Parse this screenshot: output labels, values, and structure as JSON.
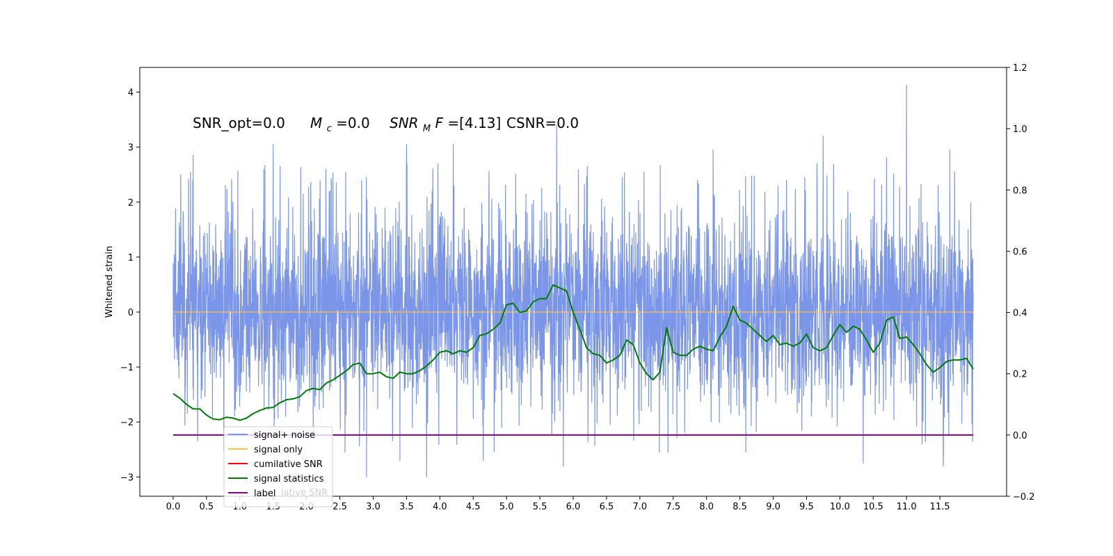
{
  "chart_data": {
    "type": "line",
    "title": "",
    "xlabel": "",
    "ylabel": "Whitened strain",
    "xlim": [
      -0.5,
      12.5
    ],
    "ylim": [
      -3.35,
      4.45
    ],
    "y2lim": [
      -0.2,
      1.2
    ],
    "grid": false,
    "x_ticks": [
      0.0,
      0.5,
      1.0,
      1.5,
      2.0,
      2.5,
      3.0,
      3.5,
      4.0,
      4.5,
      5.0,
      5.5,
      6.0,
      6.5,
      7.0,
      7.5,
      8.0,
      8.5,
      9.0,
      9.5,
      10.0,
      10.5,
      11.0,
      11.5
    ],
    "x_tick_labels": [
      "0.0",
      "0.5",
      "1.0",
      "1.5",
      "2.0",
      "2.5",
      "3.0",
      "3.5",
      "4.0",
      "4.5",
      "5.0",
      "5.5",
      "6.0",
      "6.5",
      "7.0",
      "7.5",
      "8.0",
      "8.5",
      "9.0",
      "9.5",
      "10.0",
      "10.5",
      "11.0",
      "11.5"
    ],
    "y_ticks": [
      -3,
      -2,
      -1,
      0,
      1,
      2,
      3,
      4
    ],
    "y_tick_labels": [
      "−3",
      "−2",
      "−1",
      "0",
      "1",
      "2",
      "3",
      "4"
    ],
    "y2_ticks": [
      -0.2,
      0.0,
      0.2,
      0.4,
      0.6,
      0.8,
      1.0,
      1.2
    ],
    "y2_tick_labels": [
      "−0.2",
      "0.0",
      "0.2",
      "0.4",
      "0.6",
      "0.8",
      "1.0",
      "1.2"
    ],
    "annotation": {
      "part1": "SNR_opt=0.0",
      "mc_symbol": "M",
      "mc_sub": "c",
      "part2": "=0.0",
      "snr_symbol": "SNR",
      "snr_sub": "M",
      "snr_tail": "F",
      "part3": "=[4.13]",
      "part4": "CSNR=0.0"
    },
    "legend": {
      "placement": "lower-left",
      "entries": [
        {
          "label": "signal+ noise",
          "color": "#7b96e8"
        },
        {
          "label": "signal only",
          "color": "#ffc04d"
        },
        {
          "label": "cumilative SNR",
          "color": "#ff0000"
        },
        {
          "label": "signal statistics",
          "color": "#007a00"
        },
        {
          "label": "label",
          "color": "#800080"
        }
      ],
      "hidden_text": "lative SNR"
    },
    "series": [
      {
        "name": "signal+ noise",
        "axis": "left",
        "color": "#7b96e8",
        "kind": "noise",
        "x_range": [
          0.0,
          12.0
        ],
        "samples": 3600,
        "band": [
          -1.3,
          1.4
        ],
        "peaks": [
          {
            "x": 11.0,
            "y": 4.13
          },
          {
            "x": 5.75,
            "y": 3.4
          },
          {
            "x": 9.75,
            "y": 3.2
          },
          {
            "x": 1.5,
            "y": 3.05
          },
          {
            "x": 3.5,
            "y": 3.05
          },
          {
            "x": 4.2,
            "y": 3.05
          },
          {
            "x": 0.3,
            "y": 2.85
          },
          {
            "x": 8.1,
            "y": 2.95
          },
          {
            "x": 11.65,
            "y": 2.95
          },
          {
            "x": 10.7,
            "y": 2.8
          },
          {
            "x": 2.9,
            "y": -3.0
          },
          {
            "x": 3.8,
            "y": -3.0
          },
          {
            "x": 3.4,
            "y": -2.7
          },
          {
            "x": 4.65,
            "y": -2.7
          },
          {
            "x": 5.85,
            "y": -2.8
          },
          {
            "x": 10.35,
            "y": -2.75
          },
          {
            "x": 11.55,
            "y": -2.8
          }
        ]
      },
      {
        "name": "signal only",
        "axis": "left",
        "color": "#ffc04d",
        "x": [
          0.0,
          12.0
        ],
        "y": [
          0.0,
          0.0
        ]
      },
      {
        "name": "signal statistics",
        "axis": "right",
        "color": "#007a00",
        "x": [
          0.0,
          0.1,
          0.2,
          0.3,
          0.4,
          0.5,
          0.6,
          0.7,
          0.8,
          0.9,
          1.0,
          1.1,
          1.2,
          1.3,
          1.4,
          1.5,
          1.6,
          1.7,
          1.8,
          1.9,
          2.0,
          2.1,
          2.2,
          2.3,
          2.4,
          2.5,
          2.6,
          2.7,
          2.8,
          2.9,
          3.0,
          3.1,
          3.2,
          3.3,
          3.4,
          3.5,
          3.6,
          3.7,
          3.8,
          3.9,
          4.0,
          4.1,
          4.2,
          4.3,
          4.4,
          4.5,
          4.6,
          4.7,
          4.8,
          4.9,
          5.0,
          5.1,
          5.2,
          5.3,
          5.4,
          5.5,
          5.6,
          5.7,
          5.8,
          5.9,
          6.0,
          6.1,
          6.2,
          6.3,
          6.4,
          6.5,
          6.6,
          6.7,
          6.8,
          6.9,
          7.0,
          7.1,
          7.2,
          7.3,
          7.4,
          7.5,
          7.6,
          7.7,
          7.8,
          7.9,
          8.0,
          8.1,
          8.2,
          8.3,
          8.4,
          8.5,
          8.6,
          8.7,
          8.8,
          8.9,
          9.0,
          9.1,
          9.2,
          9.3,
          9.4,
          9.5,
          9.6,
          9.7,
          9.8,
          9.9,
          10.0,
          10.1,
          10.2,
          10.3,
          10.4,
          10.5,
          10.6,
          10.7,
          10.8,
          10.9,
          11.0,
          11.1,
          11.2,
          11.3,
          11.4,
          11.5,
          11.6,
          11.7,
          11.8,
          11.9,
          12.0
        ],
        "y": [
          0.135,
          0.12,
          0.1,
          0.085,
          0.085,
          0.065,
          0.052,
          0.05,
          0.058,
          0.055,
          0.048,
          0.055,
          0.07,
          0.08,
          0.088,
          0.09,
          0.105,
          0.115,
          0.118,
          0.125,
          0.145,
          0.152,
          0.148,
          0.17,
          0.18,
          0.195,
          0.21,
          0.23,
          0.235,
          0.2,
          0.2,
          0.205,
          0.19,
          0.185,
          0.205,
          0.2,
          0.2,
          0.21,
          0.225,
          0.245,
          0.27,
          0.275,
          0.265,
          0.275,
          0.27,
          0.285,
          0.325,
          0.33,
          0.345,
          0.365,
          0.425,
          0.43,
          0.4,
          0.405,
          0.435,
          0.445,
          0.445,
          0.49,
          0.48,
          0.47,
          0.4,
          0.345,
          0.285,
          0.265,
          0.26,
          0.235,
          0.245,
          0.26,
          0.31,
          0.295,
          0.235,
          0.2,
          0.18,
          0.205,
          0.35,
          0.27,
          0.26,
          0.26,
          0.28,
          0.29,
          0.28,
          0.275,
          0.32,
          0.355,
          0.42,
          0.375,
          0.365,
          0.345,
          0.325,
          0.305,
          0.325,
          0.295,
          0.3,
          0.29,
          0.3,
          0.33,
          0.285,
          0.275,
          0.285,
          0.325,
          0.36,
          0.335,
          0.355,
          0.345,
          0.31,
          0.27,
          0.3,
          0.375,
          0.385,
          0.315,
          0.32,
          0.295,
          0.265,
          0.23,
          0.205,
          0.22,
          0.24,
          0.245,
          0.245,
          0.25,
          0.215
        ]
      },
      {
        "name": "label",
        "axis": "right",
        "color": "#800080",
        "x": [
          0.0,
          12.0
        ],
        "y": [
          0.0,
          0.0
        ]
      }
    ]
  }
}
